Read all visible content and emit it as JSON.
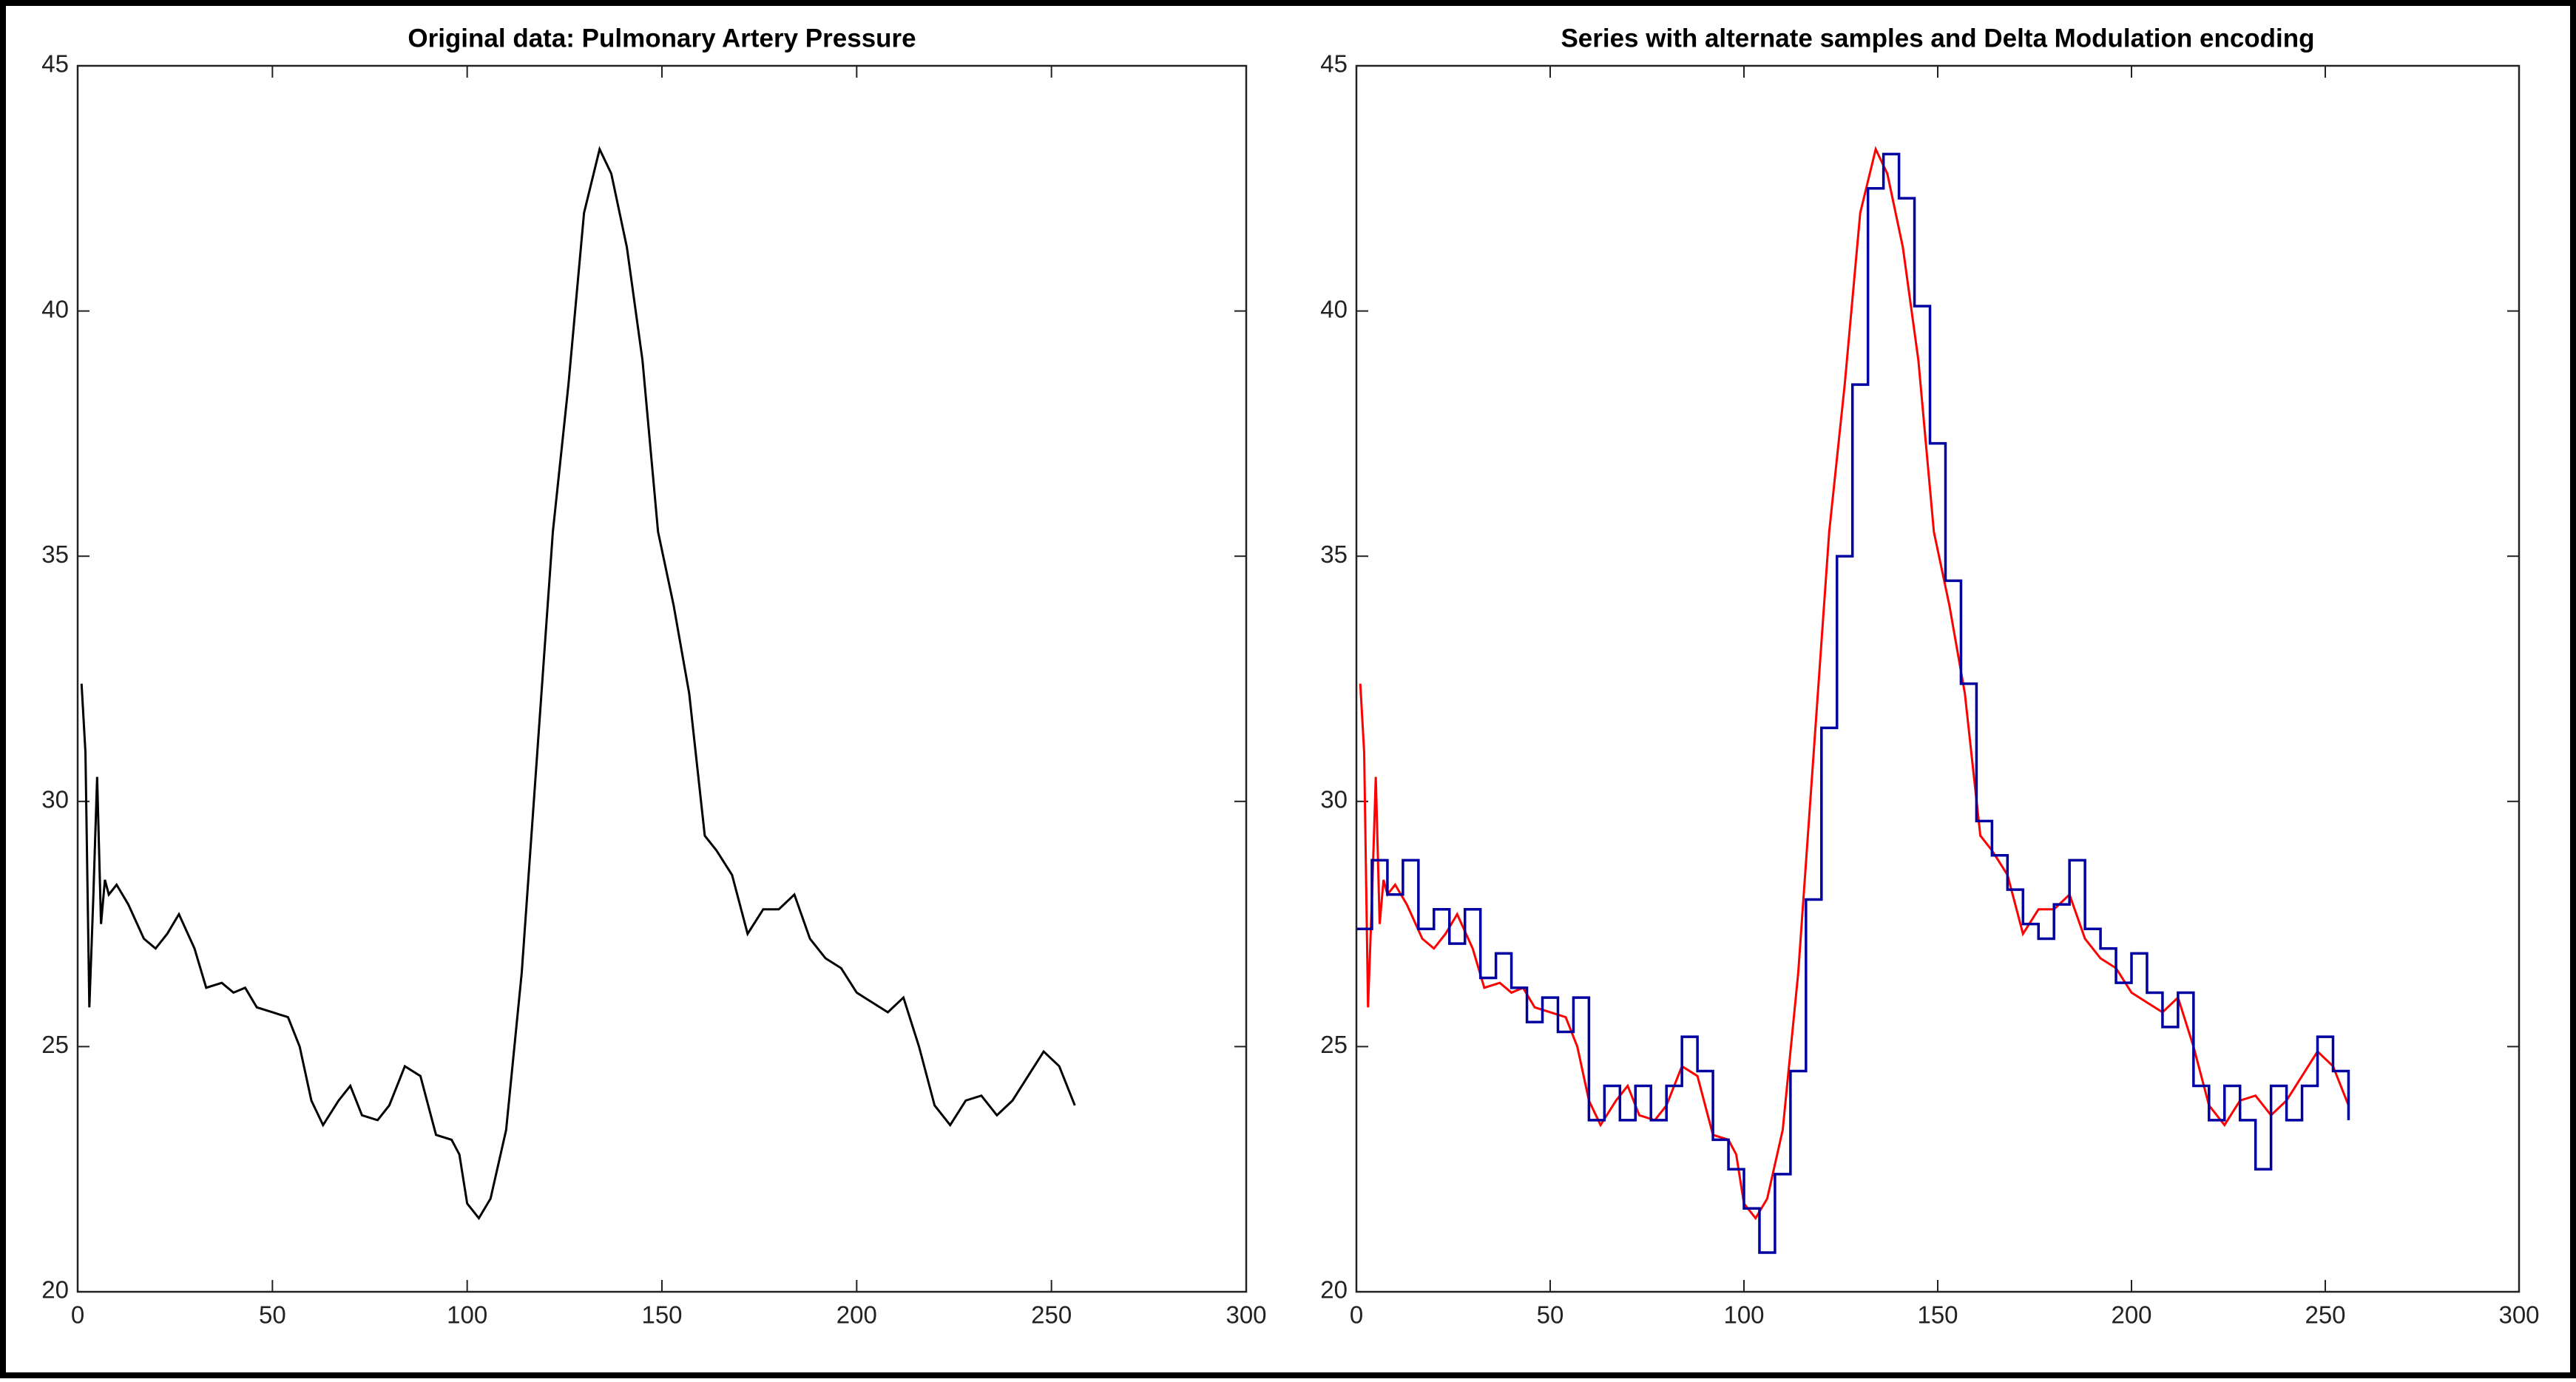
{
  "chart_data": [
    {
      "type": "line",
      "title": "Original data: Pulmonary Artery Pressure",
      "xlim": [
        0,
        300
      ],
      "xticks": [
        0,
        50,
        100,
        150,
        200,
        250,
        300
      ],
      "ylim": [
        20,
        45
      ],
      "yticks": [
        20,
        25,
        30,
        35,
        40,
        45
      ],
      "grid": false,
      "series": [
        {
          "color": "#000000",
          "step": false,
          "x": [
            1,
            2,
            3,
            4,
            5,
            6,
            7,
            8,
            10,
            13,
            17,
            20,
            23,
            26,
            30,
            33,
            37,
            40,
            43,
            46,
            50,
            54,
            57,
            60,
            63,
            67,
            70,
            73,
            77,
            80,
            84,
            88,
            92,
            96,
            98,
            100,
            103,
            106,
            110,
            114,
            118,
            122,
            126,
            130,
            134,
            137,
            141,
            145,
            149,
            153,
            157,
            161,
            164,
            168,
            172,
            176,
            180,
            184,
            188,
            192,
            196,
            200,
            204,
            208,
            212,
            216,
            220,
            224,
            228,
            232,
            236,
            240,
            244,
            248,
            252,
            256
          ],
          "values": [
            32.4,
            31,
            25.8,
            28,
            30.5,
            27.5,
            28.4,
            28.1,
            28.3,
            27.9,
            27.2,
            27.0,
            27.3,
            27.7,
            27.0,
            26.2,
            26.3,
            26.1,
            26.2,
            25.8,
            25.7,
            25.6,
            25.0,
            23.9,
            23.4,
            23.9,
            24.2,
            23.6,
            23.5,
            23.8,
            24.6,
            24.4,
            23.2,
            23.1,
            22.8,
            21.8,
            21.5,
            21.9,
            23.3,
            26.5,
            31,
            35.5,
            38.5,
            42,
            43.3,
            42.8,
            41.3,
            39,
            35.5,
            34,
            32.2,
            29.3,
            29.0,
            28.5,
            27.3,
            27.8,
            27.8,
            28.1,
            27.2,
            26.8,
            26.6,
            26.1,
            25.9,
            25.7,
            26.0,
            25.0,
            23.8,
            23.4,
            23.9,
            24.0,
            23.6,
            23.9,
            24.4,
            24.9,
            24.6,
            23.8
          ]
        }
      ]
    },
    {
      "type": "line",
      "title": "Series with alternate samples and Delta Modulation encoding",
      "xlim": [
        0,
        300
      ],
      "xticks": [
        0,
        50,
        100,
        150,
        200,
        250,
        300
      ],
      "ylim": [
        20,
        45
      ],
      "yticks": [
        20,
        25,
        30,
        35,
        40,
        45
      ],
      "grid": false,
      "series": [
        {
          "color": "#ff0000",
          "step": false,
          "x": [
            1,
            2,
            3,
            4,
            5,
            6,
            7,
            8,
            10,
            13,
            17,
            20,
            23,
            26,
            30,
            33,
            37,
            40,
            43,
            46,
            50,
            54,
            57,
            60,
            63,
            67,
            70,
            73,
            77,
            80,
            84,
            88,
            92,
            96,
            98,
            100,
            103,
            106,
            110,
            114,
            118,
            122,
            126,
            130,
            134,
            137,
            141,
            145,
            149,
            153,
            157,
            161,
            164,
            168,
            172,
            176,
            180,
            184,
            188,
            192,
            196,
            200,
            204,
            208,
            212,
            216,
            220,
            224,
            228,
            232,
            236,
            240,
            244,
            248,
            252,
            256
          ],
          "values": [
            32.4,
            31,
            25.8,
            28,
            30.5,
            27.5,
            28.4,
            28.1,
            28.3,
            27.9,
            27.2,
            27.0,
            27.3,
            27.7,
            27.0,
            26.2,
            26.3,
            26.1,
            26.2,
            25.8,
            25.7,
            25.6,
            25.0,
            23.9,
            23.4,
            23.9,
            24.2,
            23.6,
            23.5,
            23.8,
            24.6,
            24.4,
            23.2,
            23.1,
            22.8,
            21.8,
            21.5,
            21.9,
            23.3,
            26.5,
            31,
            35.5,
            38.5,
            42,
            43.3,
            42.8,
            41.3,
            39,
            35.5,
            34,
            32.2,
            29.3,
            29.0,
            28.5,
            27.3,
            27.8,
            27.8,
            28.1,
            27.2,
            26.8,
            26.6,
            26.1,
            25.9,
            25.7,
            26.0,
            25.0,
            23.8,
            23.4,
            23.9,
            24.0,
            23.6,
            23.9,
            24.4,
            24.9,
            24.6,
            23.8
          ]
        },
        {
          "color": "#0000a0",
          "step": true,
          "x": [
            0,
            4,
            8,
            12,
            16,
            20,
            24,
            28,
            32,
            36,
            40,
            44,
            48,
            52,
            56,
            60,
            64,
            68,
            72,
            76,
            80,
            84,
            88,
            92,
            96,
            100,
            104,
            108,
            112,
            116,
            120,
            124,
            128,
            132,
            136,
            140,
            144,
            148,
            152,
            156,
            160,
            164,
            168,
            172,
            176,
            180,
            184,
            188,
            192,
            196,
            200,
            204,
            208,
            212,
            216,
            220,
            224,
            228,
            232,
            236,
            240,
            244,
            248,
            252,
            256
          ],
          "values": [
            27.4,
            28.8,
            28.1,
            28.8,
            27.4,
            27.8,
            27.1,
            27.8,
            26.4,
            26.9,
            26.2,
            25.5,
            26.0,
            25.3,
            26.0,
            23.5,
            24.2,
            23.5,
            24.2,
            23.5,
            24.2,
            25.2,
            24.5,
            23.1,
            22.5,
            21.7,
            20.8,
            22.4,
            24.5,
            28.0,
            31.5,
            35.0,
            38.5,
            42.5,
            43.2,
            42.3,
            40.1,
            37.3,
            34.5,
            32.4,
            29.6,
            28.9,
            28.2,
            27.5,
            27.2,
            27.9,
            28.8,
            27.4,
            27.0,
            26.3,
            26.9,
            26.1,
            25.4,
            26.1,
            24.2,
            23.5,
            24.2,
            23.5,
            22.5,
            24.2,
            23.5,
            24.2,
            25.2,
            24.5,
            23.5
          ]
        }
      ]
    }
  ]
}
